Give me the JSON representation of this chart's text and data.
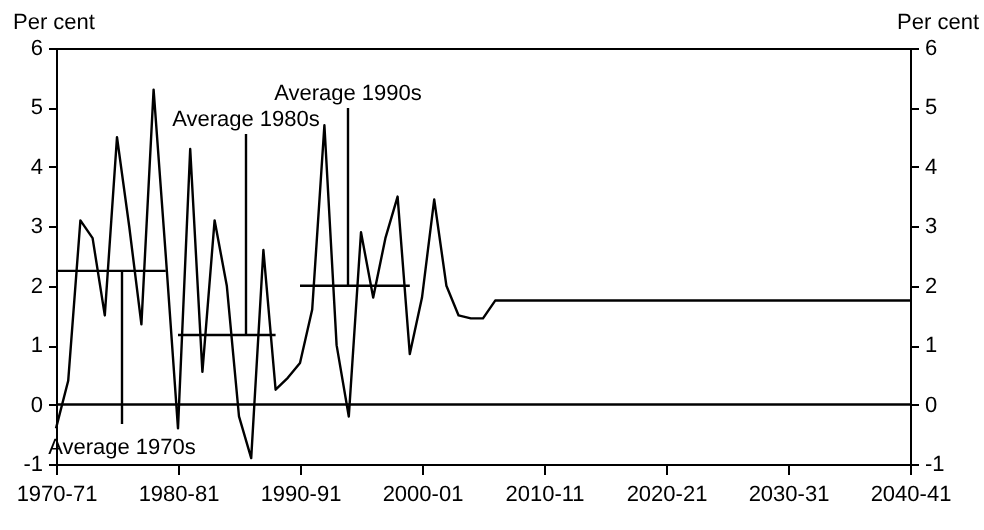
{
  "chart_data": {
    "type": "line",
    "ylabel": "Per cent",
    "y2label": "Per cent",
    "categories": [
      "1970-71",
      null,
      null,
      null,
      null,
      null,
      null,
      null,
      null,
      null,
      "1980-81",
      null,
      null,
      null,
      null,
      null,
      null,
      null,
      null,
      null,
      "1990-91",
      null,
      null,
      null,
      null,
      null,
      null,
      null,
      null,
      null,
      "2000-01",
      null,
      null,
      null,
      null,
      null,
      null,
      null,
      null,
      null,
      "2010-11",
      null,
      null,
      null,
      null,
      null,
      null,
      null,
      null,
      null,
      "2020-21",
      null,
      null,
      null,
      null,
      null,
      null,
      null,
      null,
      null,
      "2030-31",
      null,
      null,
      null,
      null,
      null,
      null,
      null,
      null,
      null,
      "2040-41"
    ],
    "ylim": [
      -1,
      6
    ],
    "yticks": [
      -1,
      0,
      1,
      2,
      3,
      4,
      5,
      6
    ],
    "y2lim": [
      -1,
      6
    ],
    "y2ticks": [
      -1,
      0,
      1,
      2,
      3,
      4,
      5,
      6
    ],
    "series": [
      {
        "color": "#000000",
        "values": [
          -0.4,
          0.4,
          3.1,
          2.8,
          1.5,
          4.5,
          3.0,
          1.35,
          5.3,
          2.5,
          -0.4,
          4.3,
          0.55,
          3.1,
          2.0,
          -0.2,
          -0.9,
          2.6,
          0.25,
          0.45,
          0.7,
          1.6,
          4.7,
          1.0,
          -0.2,
          2.9,
          1.8,
          2.8,
          3.5,
          0.85,
          1.8,
          3.45,
          2.0,
          1.5,
          1.45,
          1.45,
          1.75,
          1.75,
          1.75,
          1.75,
          1.75,
          1.75,
          1.75,
          1.75,
          1.75,
          1.75,
          1.75,
          1.75,
          1.75,
          1.75,
          1.75,
          1.75,
          1.75,
          1.75,
          1.75,
          1.75,
          1.75,
          1.75,
          1.75,
          1.75,
          1.75,
          1.75,
          1.75,
          1.75,
          1.75,
          1.75,
          1.75,
          1.75,
          1.75,
          1.75,
          1.75
        ]
      },
      {
        "color": "#000000",
        "values": [
          2.25,
          2.25,
          2.25,
          2.25,
          2.25,
          2.25,
          2.25,
          2.25,
          2.25,
          2.25,
          null,
          null,
          null,
          null,
          null,
          null,
          null,
          null,
          null,
          null,
          null,
          null,
          null,
          null,
          null,
          null,
          null,
          null,
          null,
          null,
          null,
          null,
          null,
          null,
          null,
          null,
          null,
          null,
          null,
          null,
          null,
          null,
          null,
          null,
          null,
          null,
          null,
          null,
          null,
          null,
          null,
          null,
          null,
          null,
          null,
          null,
          null,
          null,
          null,
          null,
          null,
          null,
          null,
          null,
          null,
          null,
          null,
          null,
          null,
          null,
          null
        ]
      },
      {
        "color": "#000000",
        "values": [
          null,
          null,
          null,
          null,
          null,
          null,
          null,
          null,
          null,
          null,
          1.17,
          1.17,
          1.17,
          1.17,
          1.17,
          1.17,
          1.17,
          1.17,
          1.17,
          null,
          null,
          null,
          null,
          null,
          null,
          null,
          null,
          null,
          null,
          null,
          null,
          null,
          null,
          null,
          null,
          null,
          null,
          null,
          null,
          null,
          null,
          null,
          null,
          null,
          null,
          null,
          null,
          null,
          null,
          null,
          null,
          null,
          null,
          null,
          null,
          null,
          null,
          null,
          null,
          null,
          null,
          null,
          null,
          null,
          null,
          null,
          null,
          null,
          null,
          null,
          null
        ]
      },
      {
        "color": "#000000",
        "values": [
          null,
          null,
          null,
          null,
          null,
          null,
          null,
          null,
          null,
          null,
          null,
          null,
          null,
          null,
          null,
          null,
          null,
          null,
          null,
          null,
          2.0,
          2.0,
          2.0,
          2.0,
          2.0,
          2.0,
          2.0,
          2.0,
          2.0,
          2.0,
          null,
          null,
          null,
          null,
          null,
          null,
          null,
          null,
          null,
          null,
          null,
          null,
          null,
          null,
          null,
          null,
          null,
          null,
          null,
          null,
          null,
          null,
          null,
          null,
          null,
          null,
          null,
          null,
          null,
          null,
          null,
          null,
          null,
          null,
          null,
          null,
          null,
          null,
          null,
          null,
          null
        ]
      }
    ],
    "ref_lines": [
      {
        "axis": "y2",
        "value": 0,
        "color": "#000000"
      }
    ],
    "annotations": [
      {
        "text": "Average 1970s",
        "y": 2.25
      },
      {
        "text": "Average 1980s",
        "y": 1.17
      },
      {
        "text": "Average 1990s",
        "y": 2.0
      }
    ],
    "grid": false,
    "legend": false
  }
}
